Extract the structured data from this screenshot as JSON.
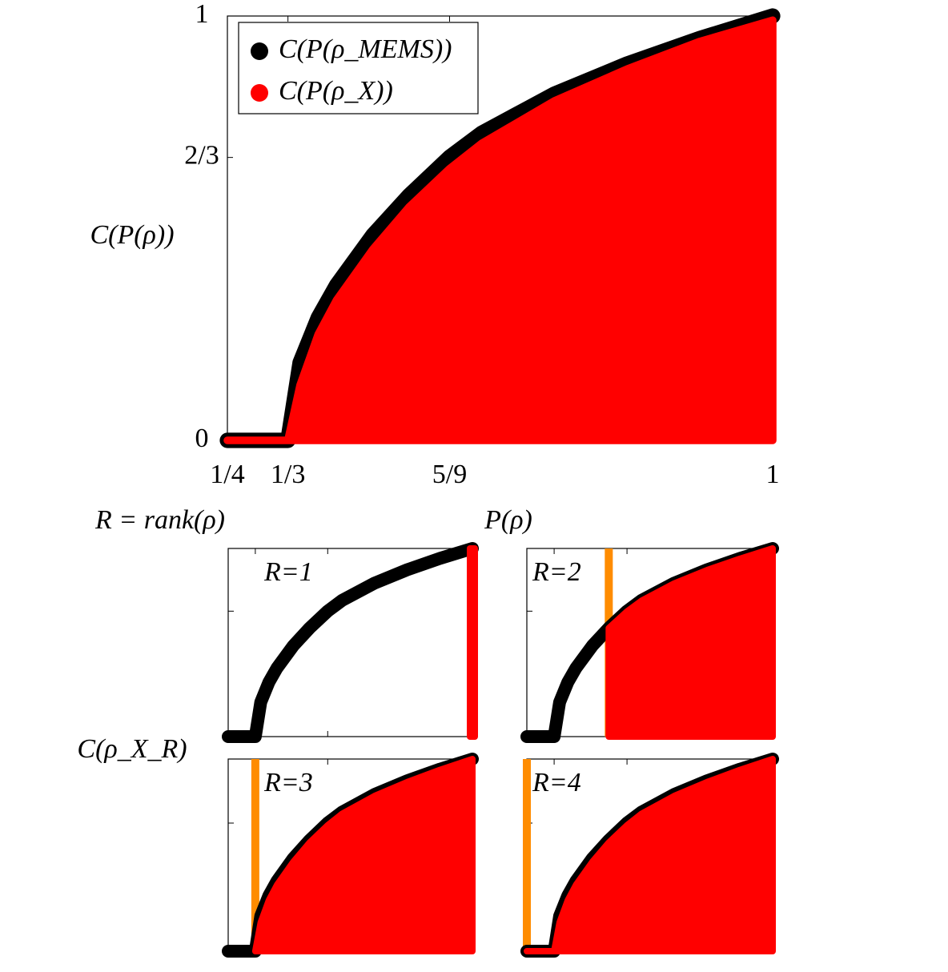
{
  "chart_data": [
    {
      "type": "area",
      "xlabel": "P(ρ)",
      "ylabel": "C(P(ρ))",
      "annotation": "R = rank(ρ)",
      "x": [
        0.25,
        0.3333,
        0.35,
        0.375,
        0.4,
        0.45,
        0.5,
        0.5556,
        0.6,
        0.7,
        0.8,
        0.9,
        1
      ],
      "series": [
        {
          "name": "C(P(ρ_MEMS))",
          "color": "#000000",
          "values": [
            0,
            0,
            0.183,
            0.289,
            0.365,
            0.483,
            0.577,
            0.667,
            0.724,
            0.816,
            0.887,
            0.947,
            1
          ]
        },
        {
          "name": "C(P(ρ_X))",
          "color": "#ff0000",
          "values": [
            0,
            0,
            0.13,
            0.25,
            0.33,
            0.45,
            0.55,
            0.64,
            0.7,
            0.8,
            0.875,
            0.94,
            0.99
          ]
        }
      ],
      "xlim": [
        0.25,
        1
      ],
      "ylim": [
        0,
        1
      ],
      "xticks": [
        {
          "value": 0.25,
          "label": "1/4"
        },
        {
          "value": 0.3333,
          "label": "1/3"
        },
        {
          "value": 0.5556,
          "label": "5/9"
        },
        1
      ],
      "yticks": [
        0,
        {
          "value": 0.6667,
          "label": "2/3"
        },
        1
      ],
      "legend": "upper left"
    },
    {
      "type": "area",
      "title": "R=1",
      "x": [
        0.25,
        0.3333,
        0.35,
        0.375,
        0.4,
        0.45,
        0.5,
        0.5556,
        0.6,
        0.7,
        0.8,
        0.9,
        1
      ],
      "series": [
        {
          "color": "#000000",
          "values": [
            0,
            0,
            0.183,
            0.289,
            0.365,
            0.483,
            0.577,
            0.667,
            0.724,
            0.816,
            0.887,
            0.947,
            1
          ]
        },
        {
          "color": "#ff0000",
          "values": [
            null,
            null,
            null,
            null,
            null,
            null,
            null,
            null,
            null,
            null,
            null,
            null,
            1
          ]
        }
      ],
      "xlim": [
        0.25,
        1
      ],
      "ylim": [
        0,
        1
      ]
    },
    {
      "type": "area",
      "title": "R=2",
      "threshold": {
        "value": 0.5,
        "color": "#ff8c00"
      },
      "x": [
        0.25,
        0.3333,
        0.35,
        0.375,
        0.4,
        0.45,
        0.5,
        0.5556,
        0.6,
        0.7,
        0.8,
        0.9,
        1
      ],
      "series": [
        {
          "color": "#000000",
          "values": [
            0,
            0,
            0.183,
            0.289,
            0.365,
            0.483,
            0.577,
            0.667,
            0.724,
            0.816,
            0.887,
            0.947,
            1
          ]
        },
        {
          "color": "#ff0000",
          "values": [
            null,
            null,
            null,
            null,
            null,
            null,
            0.577,
            0.665,
            0.722,
            0.814,
            0.885,
            0.945,
            1
          ]
        }
      ],
      "xlim": [
        0.25,
        1
      ],
      "ylim": [
        0,
        1
      ]
    },
    {
      "type": "area",
      "title": "R=3",
      "threshold": {
        "value": 0.3333,
        "color": "#ff8c00"
      },
      "x": [
        0.25,
        0.3333,
        0.35,
        0.375,
        0.4,
        0.45,
        0.5,
        0.5556,
        0.6,
        0.7,
        0.8,
        0.9,
        1
      ],
      "series": [
        {
          "color": "#000000",
          "values": [
            0,
            0,
            0.183,
            0.289,
            0.365,
            0.483,
            0.577,
            0.667,
            0.724,
            0.816,
            0.887,
            0.947,
            1
          ]
        },
        {
          "color": "#ff0000",
          "values": [
            null,
            0,
            0.15,
            0.265,
            0.345,
            0.465,
            0.565,
            0.655,
            0.715,
            0.808,
            0.88,
            0.943,
            1
          ]
        }
      ],
      "xlim": [
        0.25,
        1
      ],
      "ylim": [
        0,
        1
      ]
    },
    {
      "type": "area",
      "title": "R=4",
      "threshold": {
        "value": 0.25,
        "color": "#ff8c00"
      },
      "x": [
        0.25,
        0.3333,
        0.35,
        0.375,
        0.4,
        0.45,
        0.5,
        0.5556,
        0.6,
        0.7,
        0.8,
        0.9,
        1
      ],
      "series": [
        {
          "color": "#000000",
          "values": [
            0,
            0,
            0.183,
            0.289,
            0.365,
            0.483,
            0.577,
            0.667,
            0.724,
            0.816,
            0.887,
            0.947,
            1
          ]
        },
        {
          "color": "#ff0000",
          "values": [
            0,
            0,
            0.15,
            0.265,
            0.345,
            0.465,
            0.565,
            0.655,
            0.715,
            0.808,
            0.88,
            0.943,
            1
          ]
        }
      ],
      "xlim": [
        0.25,
        1
      ],
      "ylim": [
        0,
        1
      ]
    }
  ],
  "subplots_ylabel": "C(ρ_X_R)"
}
